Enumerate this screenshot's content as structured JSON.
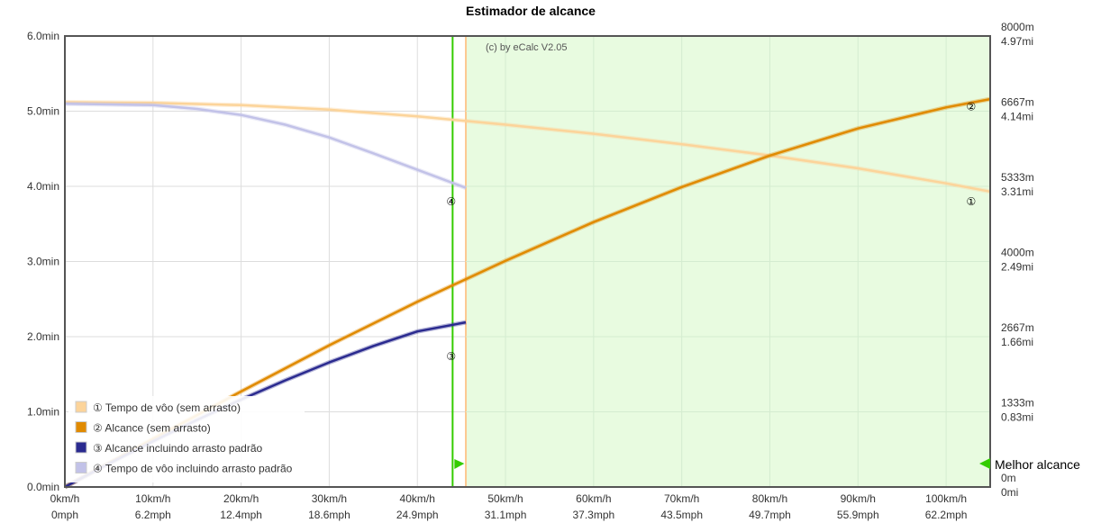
{
  "chart_data": {
    "type": "line",
    "title": "Estimador de alcance",
    "credit": "(c) by eCalc  V2.05",
    "best_range_label": "Melhor alcance",
    "x_axis": {
      "range_kmh": [
        0,
        105
      ],
      "ticks": [
        {
          "kmh": 0,
          "top": "0km/h",
          "bottom": "0mph"
        },
        {
          "kmh": 10,
          "top": "10km/h",
          "bottom": "6.2mph"
        },
        {
          "kmh": 20,
          "top": "20km/h",
          "bottom": "12.4mph"
        },
        {
          "kmh": 30,
          "top": "30km/h",
          "bottom": "18.6mph"
        },
        {
          "kmh": 40,
          "top": "40km/h",
          "bottom": "24.9mph"
        },
        {
          "kmh": 50,
          "top": "50km/h",
          "bottom": "31.1mph"
        },
        {
          "kmh": 60,
          "top": "60km/h",
          "bottom": "37.3mph"
        },
        {
          "kmh": 70,
          "top": "70km/h",
          "bottom": "43.5mph"
        },
        {
          "kmh": 80,
          "top": "80km/h",
          "bottom": "49.7mph"
        },
        {
          "kmh": 90,
          "top": "90km/h",
          "bottom": "55.9mph"
        },
        {
          "kmh": 100,
          "top": "100km/h",
          "bottom": "62.2mph"
        }
      ]
    },
    "y_left": {
      "range_min": [
        0,
        6
      ],
      "ticks": [
        {
          "v": 0,
          "label": "0.0min"
        },
        {
          "v": 1,
          "label": "1.0min"
        },
        {
          "v": 2,
          "label": "2.0min"
        },
        {
          "v": 3,
          "label": "3.0min"
        },
        {
          "v": 4,
          "label": "4.0min"
        },
        {
          "v": 5,
          "label": "5.0min"
        },
        {
          "v": 6,
          "label": "6.0min"
        }
      ]
    },
    "y_right": {
      "range_m": [
        0,
        8000
      ],
      "ticks": [
        {
          "v": 0,
          "m": "0m",
          "mi": "0mi"
        },
        {
          "v": 1333,
          "m": "1333m",
          "mi": "0.83mi"
        },
        {
          "v": 2667,
          "m": "2667m",
          "mi": "1.66mi"
        },
        {
          "v": 4000,
          "m": "4000m",
          "mi": "2.49mi"
        },
        {
          "v": 5333,
          "m": "5333m",
          "mi": "3.31mi"
        },
        {
          "v": 6667,
          "m": "6667m",
          "mi": "4.14mi"
        },
        {
          "v": 8000,
          "m": "8000m",
          "mi": "4.97mi"
        }
      ]
    },
    "regions": {
      "best_range_zone_kmh": [
        45.5,
        105
      ],
      "green_line_kmh": 44,
      "orange_line_kmh": 45.5
    },
    "series": [
      {
        "name": "Tempo de vôo (sem arrasto)",
        "marker": "①",
        "axis": "left",
        "color": "#fcd49a",
        "x": [
          0,
          10,
          20,
          30,
          40,
          50,
          60,
          70,
          80,
          90,
          100,
          105
        ],
        "y": [
          5.12,
          5.11,
          5.08,
          5.02,
          4.93,
          4.82,
          4.7,
          4.56,
          4.41,
          4.24,
          4.04,
          3.93
        ]
      },
      {
        "name": "Alcance (sem arrasto)",
        "marker": "②",
        "axis": "right",
        "color": "#e08a00",
        "x": [
          0,
          10,
          20,
          30,
          40,
          50,
          60,
          70,
          80,
          90,
          100,
          105
        ],
        "y": [
          0,
          855,
          1695,
          2513,
          3287,
          4013,
          4700,
          5320,
          5880,
          6360,
          6733,
          6880
        ]
      },
      {
        "name": "Alcance incluindo arrasto padrão",
        "marker": "③",
        "axis": "right",
        "color": "#2a2a8f",
        "x": [
          0,
          5,
          10,
          15,
          20,
          25,
          30,
          35,
          40,
          45.5
        ],
        "y": [
          0,
          415,
          810,
          1190,
          1550,
          1890,
          2210,
          2500,
          2760,
          2920
        ]
      },
      {
        "name": "Tempo de vôo incluindo arrasto padrão",
        "marker": "④",
        "axis": "left",
        "color": "#c2c2e8",
        "x": [
          0,
          10,
          15,
          20,
          25,
          30,
          35,
          40,
          45.5
        ],
        "y": [
          5.1,
          5.08,
          5.03,
          4.95,
          4.82,
          4.65,
          4.44,
          4.22,
          3.98
        ]
      }
    ],
    "marker_positions": [
      {
        "marker": "①",
        "kmh": 103,
        "v": 3.81,
        "axis": "left"
      },
      {
        "marker": "②",
        "kmh": 103,
        "v": 6760,
        "axis": "right"
      },
      {
        "marker": "③",
        "kmh": 44,
        "v": 2333,
        "axis": "right"
      },
      {
        "marker": "④",
        "kmh": 44,
        "v": 3.81,
        "axis": "left"
      }
    ],
    "legend_position": "bottom-left",
    "grid": true
  }
}
